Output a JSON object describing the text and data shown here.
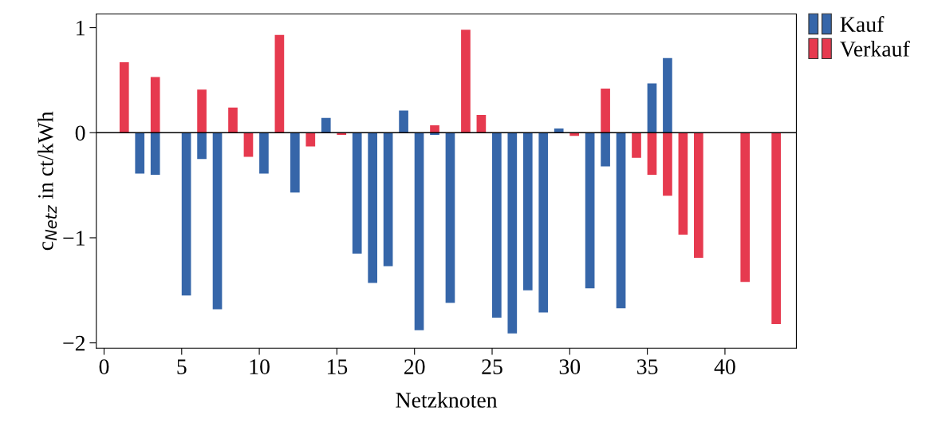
{
  "chart_data": {
    "type": "bar",
    "xlabel": "Netzknoten",
    "ylabel": "c$_{Netz}$ in ct/kWh",
    "x": [
      1,
      2,
      3,
      4,
      5,
      6,
      7,
      8,
      9,
      10,
      11,
      12,
      13,
      14,
      15,
      16,
      17,
      18,
      19,
      20,
      21,
      22,
      23,
      24,
      25,
      26,
      27,
      28,
      29,
      30,
      31,
      32,
      33,
      34,
      35,
      36,
      37,
      38,
      39,
      40,
      41,
      42,
      43
    ],
    "series": [
      {
        "name": "Kauf",
        "color": "#3666a9",
        "values": [
          null,
          -0.39,
          -0.4,
          0,
          -1.55,
          -0.25,
          -1.68,
          null,
          null,
          -0.39,
          null,
          -0.57,
          null,
          0.14,
          null,
          -1.15,
          -1.43,
          -1.27,
          0.21,
          -1.88,
          -0.02,
          -1.62,
          null,
          null,
          -1.76,
          -1.91,
          -1.5,
          -1.71,
          0.04,
          null,
          -1.48,
          -0.32,
          -1.67,
          null,
          0.47,
          0.71,
          null,
          null,
          0,
          0,
          null,
          0,
          null
        ]
      },
      {
        "name": "Verkauf",
        "color": "#e63a4f",
        "values": [
          0.67,
          0,
          0.53,
          0,
          0,
          0.41,
          0,
          0.24,
          -0.23,
          0,
          0.93,
          0,
          -0.13,
          0,
          -0.02,
          0,
          0,
          0,
          0,
          0,
          0.07,
          0,
          0.98,
          0.17,
          0,
          0,
          0,
          0,
          0,
          -0.03,
          0,
          0.42,
          0,
          -0.24,
          -0.4,
          -0.6,
          -0.97,
          -1.19,
          0,
          0,
          -1.42,
          0,
          -1.82
        ]
      }
    ],
    "xlim": [
      -0.5,
      44.6
    ],
    "ylim": [
      -2.05,
      1.13
    ],
    "xticks": [
      0,
      5,
      10,
      15,
      20,
      25,
      30,
      35,
      40
    ],
    "yticks": [
      {
        "value": -2,
        "label": "−2"
      },
      {
        "value": -1,
        "label": "−1"
      },
      0,
      1
    ],
    "ref_lines": [
      {
        "axis": "y",
        "value": 0,
        "color": "#000000"
      }
    ],
    "grid": false,
    "legend": "top right"
  }
}
